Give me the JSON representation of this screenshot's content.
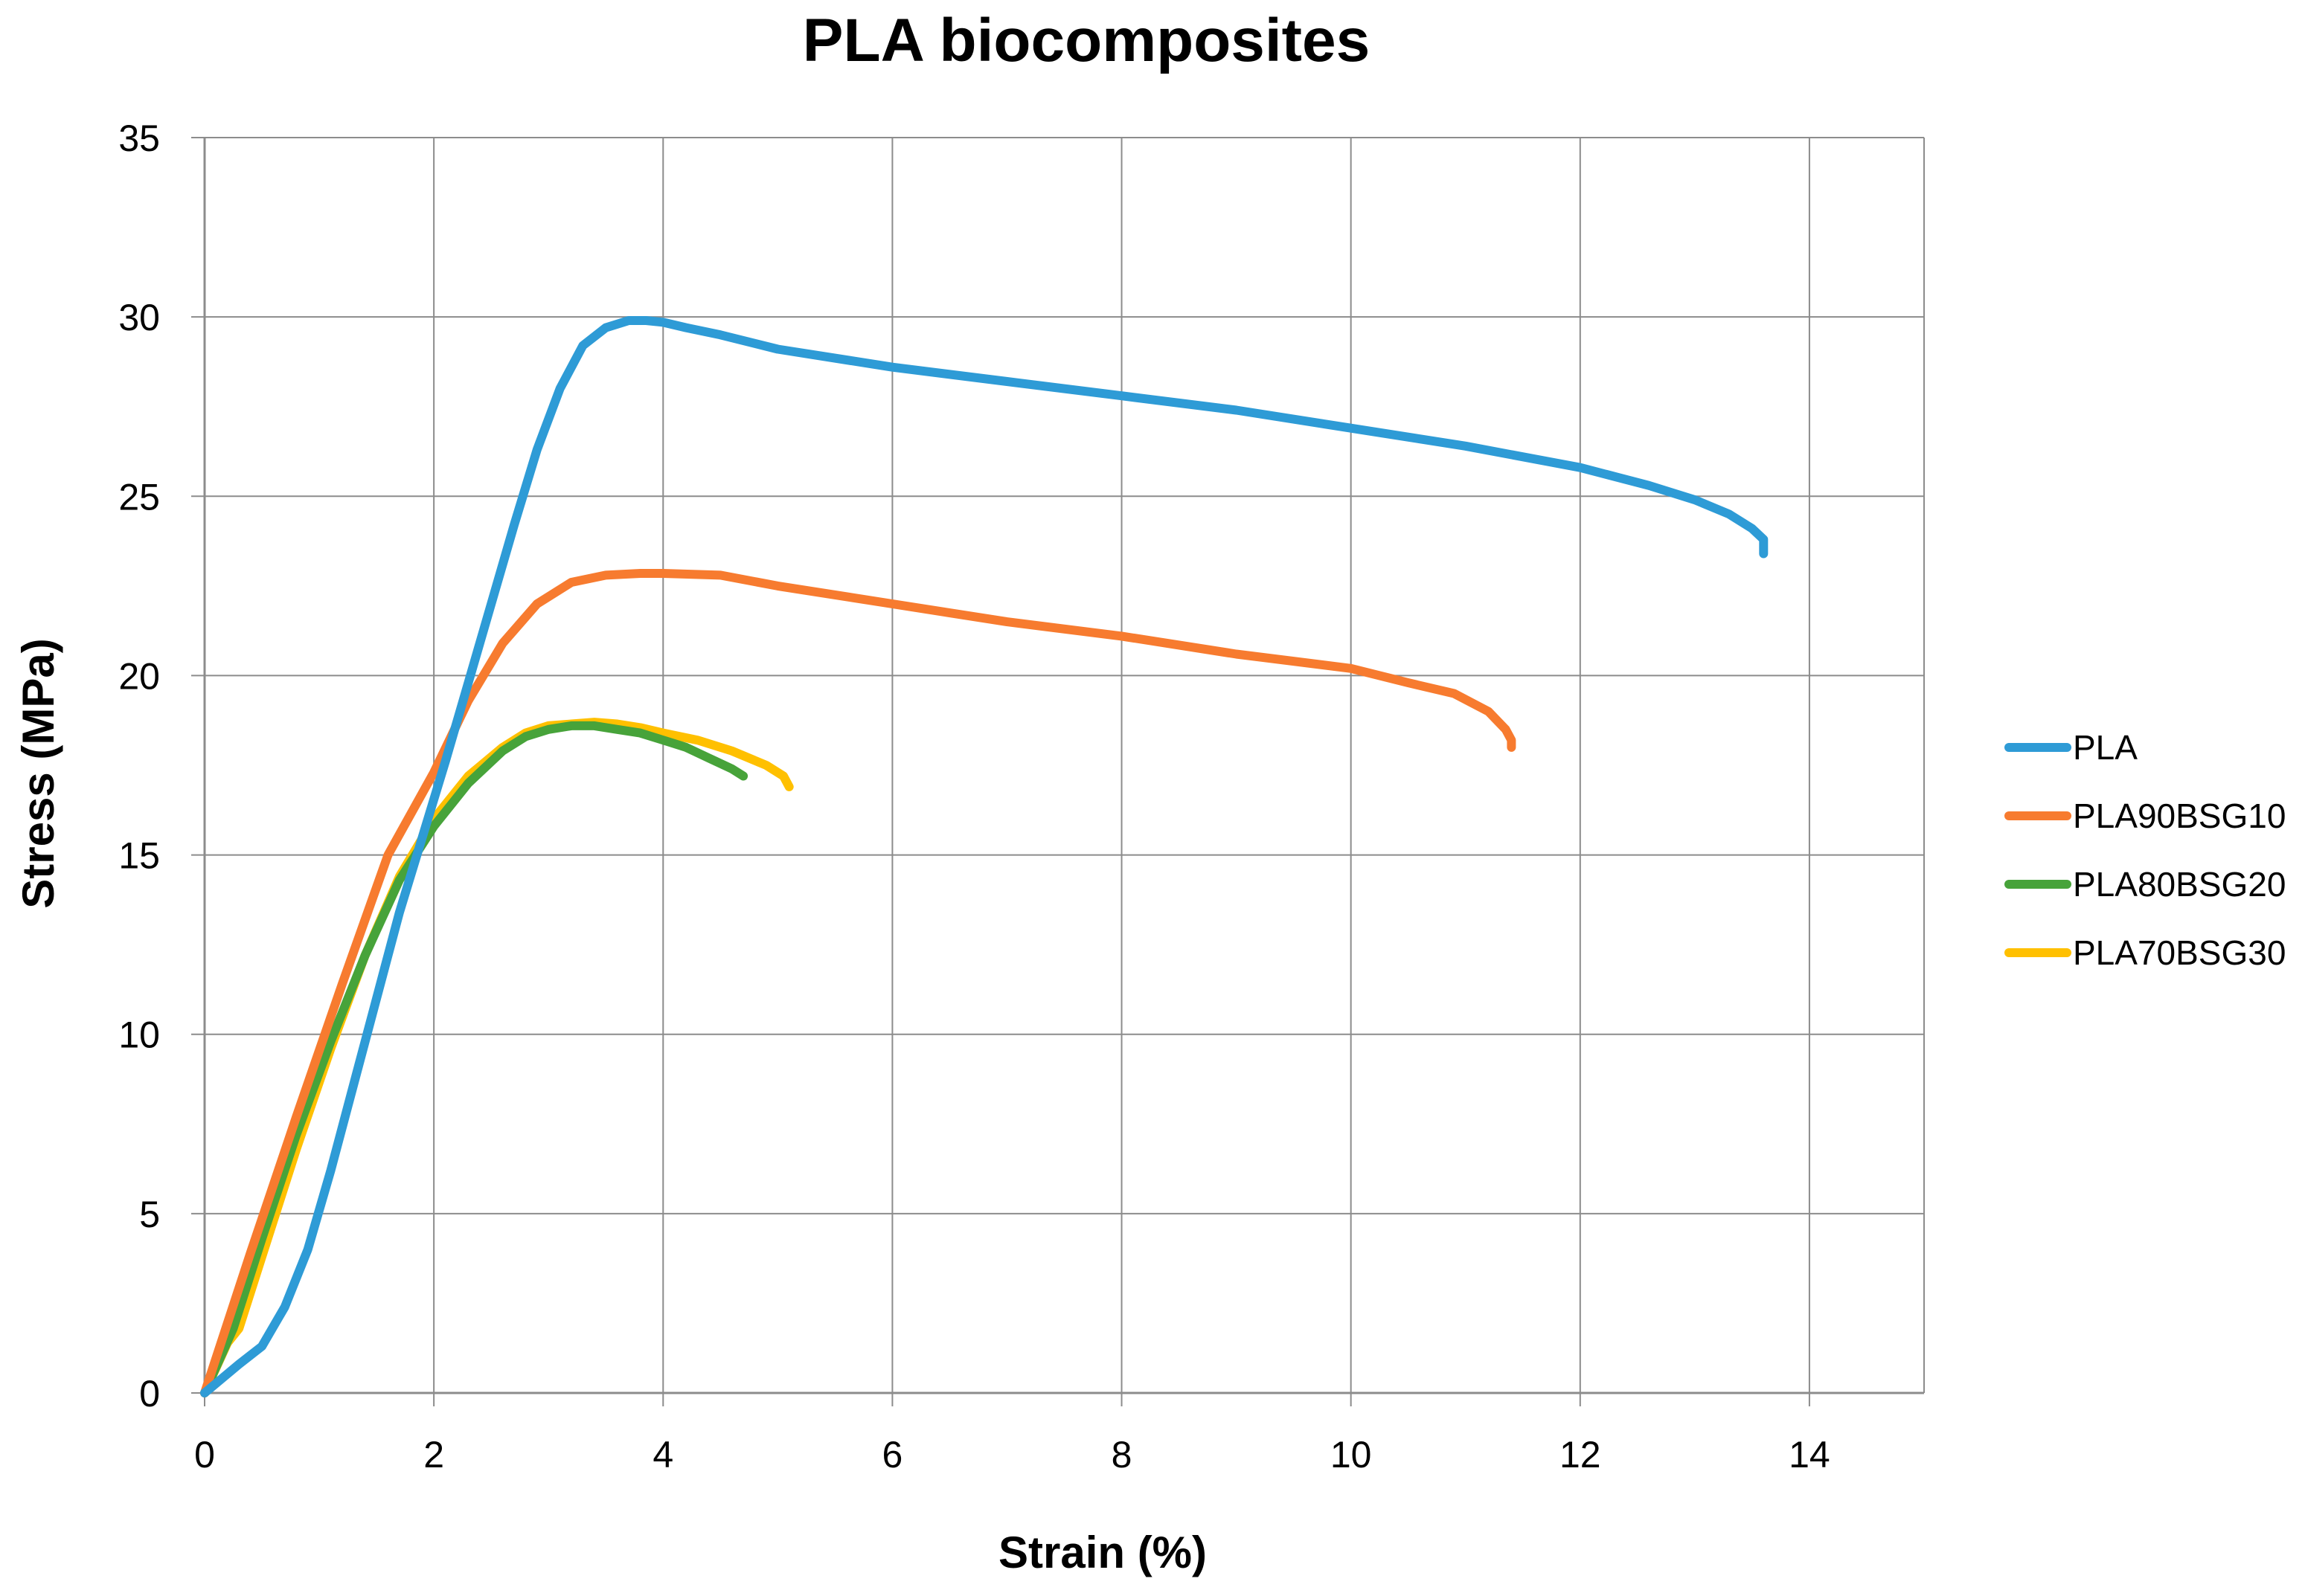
{
  "chart_data": {
    "type": "line",
    "title": "PLA biocomposites",
    "xlabel": "Strain (%)",
    "ylabel": "Stress (MPa)",
    "xlim": [
      0,
      15
    ],
    "ylim": [
      0,
      35
    ],
    "xticks": [
      0,
      2,
      4,
      6,
      8,
      10,
      12,
      14
    ],
    "yticks": [
      0,
      5,
      10,
      15,
      20,
      25,
      30,
      35
    ],
    "grid": true,
    "legend_position": "right",
    "series": [
      {
        "name": "PLA",
        "color": "#2E9BD6",
        "x": [
          0,
          0.3,
          0.5,
          0.7,
          0.9,
          1.1,
          1.3,
          1.5,
          1.7,
          1.9,
          2.1,
          2.3,
          2.5,
          2.7,
          2.9,
          3.1,
          3.3,
          3.5,
          3.7,
          3.85,
          4.0,
          4.2,
          4.5,
          5.0,
          6.0,
          7.0,
          8.0,
          9.0,
          10.0,
          11.0,
          12.0,
          12.6,
          13.0,
          13.3,
          13.5,
          13.6,
          13.6
        ],
        "y": [
          0,
          0.8,
          1.3,
          2.4,
          4.0,
          6.2,
          8.6,
          11.0,
          13.4,
          15.5,
          17.6,
          19.8,
          22.0,
          24.2,
          26.3,
          28.0,
          29.2,
          29.7,
          29.9,
          29.9,
          29.85,
          29.7,
          29.5,
          29.1,
          28.6,
          28.2,
          27.8,
          27.4,
          26.9,
          26.4,
          25.8,
          25.3,
          24.9,
          24.5,
          24.1,
          23.8,
          23.4
        ]
      },
      {
        "name": "PLA90BSG10",
        "color": "#F77B2F",
        "x": [
          0,
          0.4,
          0.8,
          1.2,
          1.6,
          2.0,
          2.3,
          2.6,
          2.9,
          3.2,
          3.5,
          3.8,
          4.0,
          4.5,
          5.0,
          6.0,
          7.0,
          8.0,
          9.0,
          10.0,
          10.5,
          10.9,
          11.2,
          11.35,
          11.4,
          11.4
        ],
        "y": [
          0,
          3.9,
          7.7,
          11.4,
          15.0,
          17.3,
          19.3,
          20.9,
          22.0,
          22.6,
          22.8,
          22.85,
          22.85,
          22.8,
          22.5,
          22.0,
          21.5,
          21.1,
          20.6,
          20.2,
          19.8,
          19.5,
          19.0,
          18.5,
          18.2,
          18.0
        ]
      },
      {
        "name": "PLA80BSG20",
        "color": "#47A33A",
        "x": [
          0,
          0.25,
          0.5,
          0.8,
          1.1,
          1.4,
          1.7,
          2.0,
          2.3,
          2.6,
          2.8,
          3.0,
          3.2,
          3.4,
          3.6,
          3.8,
          4.0,
          4.2,
          4.4,
          4.6,
          4.7
        ],
        "y": [
          0,
          1.8,
          4.3,
          7.2,
          9.8,
          12.2,
          14.3,
          15.8,
          17.0,
          17.9,
          18.3,
          18.5,
          18.6,
          18.6,
          18.5,
          18.4,
          18.2,
          18.0,
          17.7,
          17.4,
          17.2
        ]
      },
      {
        "name": "PLA70BSG30",
        "color": "#FFC000",
        "x": [
          0,
          0.2,
          0.3,
          0.5,
          0.8,
          1.1,
          1.4,
          1.7,
          2.0,
          2.3,
          2.6,
          2.8,
          3.0,
          3.2,
          3.4,
          3.6,
          3.8,
          4.0,
          4.3,
          4.6,
          4.9,
          5.05,
          5.1
        ],
        "y": [
          0,
          1.4,
          1.8,
          3.8,
          6.8,
          9.6,
          12.2,
          14.4,
          16.0,
          17.2,
          18.0,
          18.4,
          18.6,
          18.65,
          18.7,
          18.65,
          18.55,
          18.4,
          18.2,
          17.9,
          17.5,
          17.2,
          16.9
        ]
      }
    ]
  }
}
